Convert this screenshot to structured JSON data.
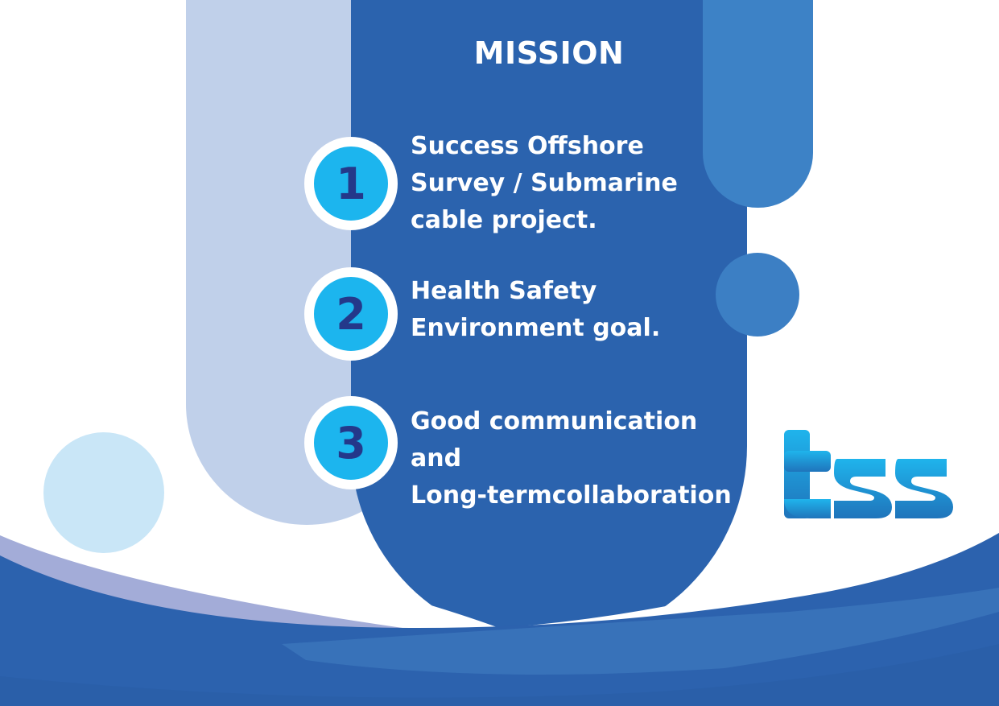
{
  "title": "MISSION",
  "items": [
    {
      "number": "1",
      "lines": [
        "Success Offshore",
        "Survey / Submarine",
        "cable project."
      ]
    },
    {
      "number": "2",
      "lines": [
        "Health Safety",
        "Environment goal."
      ]
    },
    {
      "number": "3",
      "lines": [
        "Good communication and",
        "Long-termcollaboration"
      ]
    }
  ],
  "logo": {
    "text": "tss",
    "icon": "tss-logo-icon"
  },
  "colors": {
    "main_blue": "#2b63ae",
    "light_blue": "#c0d0ea",
    "accent_blue": "#3d82c6",
    "badge_cyan": "#1cb5ee",
    "badge_number": "#24388a",
    "pale_circle": "#c9e6f7"
  }
}
